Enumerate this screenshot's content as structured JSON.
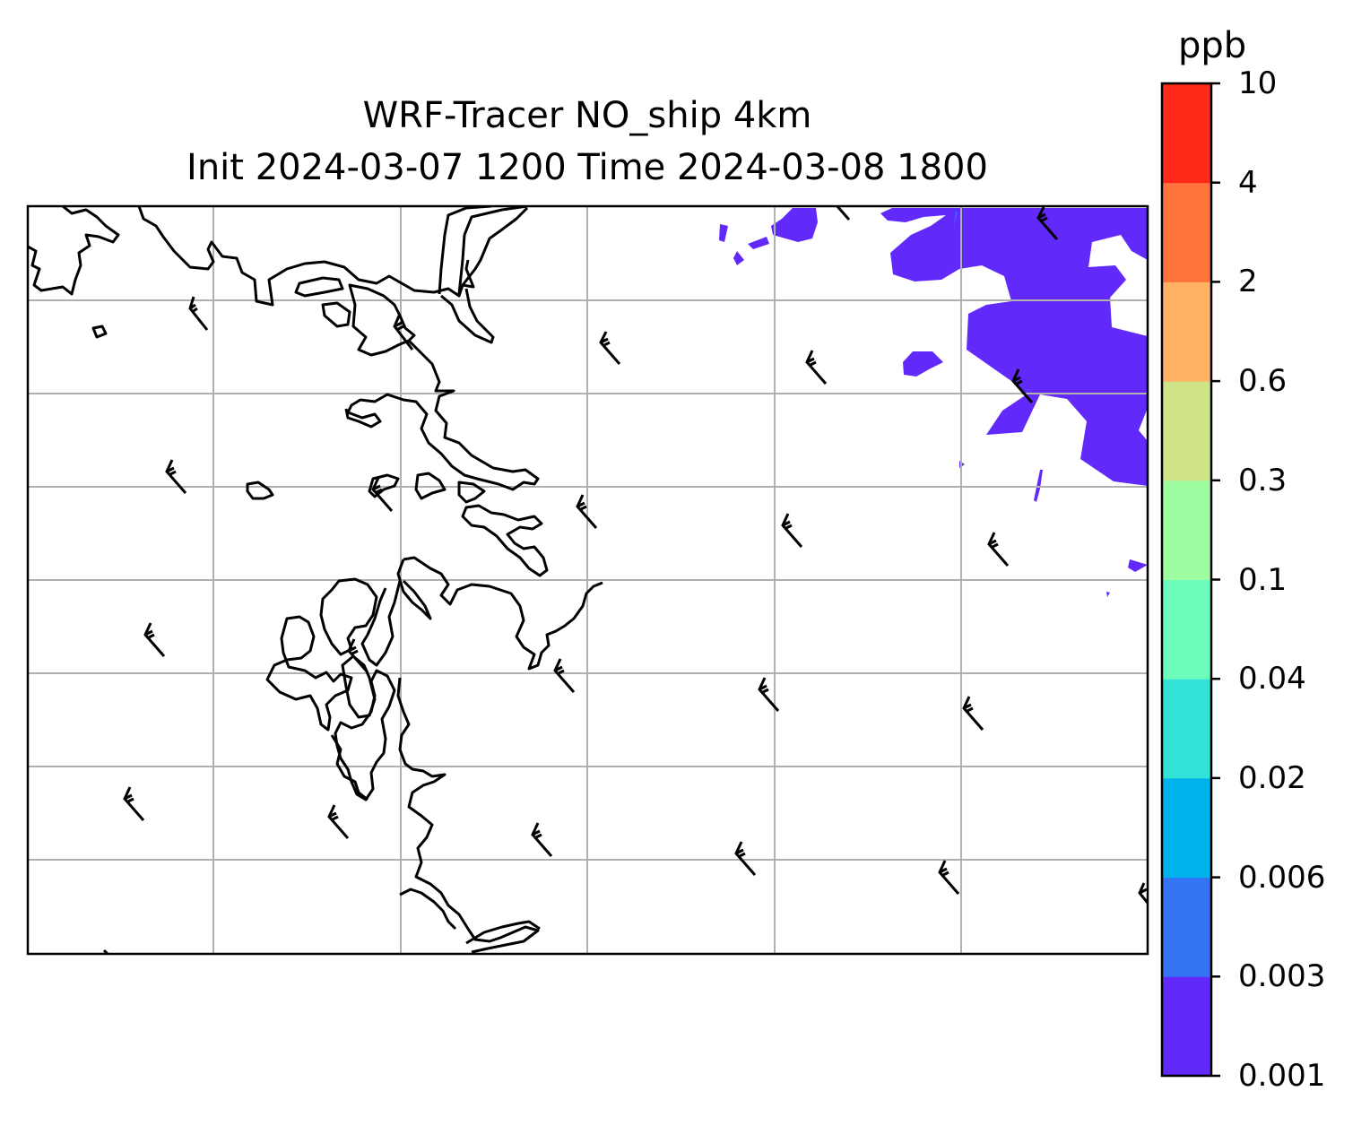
{
  "title": {
    "line1": "WRF-Tracer NO_ship 4km",
    "line2": "Init 2024-03-07 1200 Time 2024-03-08 1800"
  },
  "colorbar": {
    "unit": "ppb",
    "levels": [
      "0.001",
      "0.003",
      "0.006",
      "0.02",
      "0.04",
      "0.1",
      "0.3",
      "0.6",
      "2",
      "4",
      "10"
    ],
    "colors": [
      "#6229fb",
      "#3473f4",
      "#00b3ec",
      "#33e3d7",
      "#6cfdbd",
      "#9dfda0",
      "#cfe387",
      "#ffb263",
      "#ff733d",
      "#ff291a"
    ]
  },
  "map": {
    "plume_color": "#6229fb",
    "grid": true,
    "coastline_color": "#000000"
  }
}
